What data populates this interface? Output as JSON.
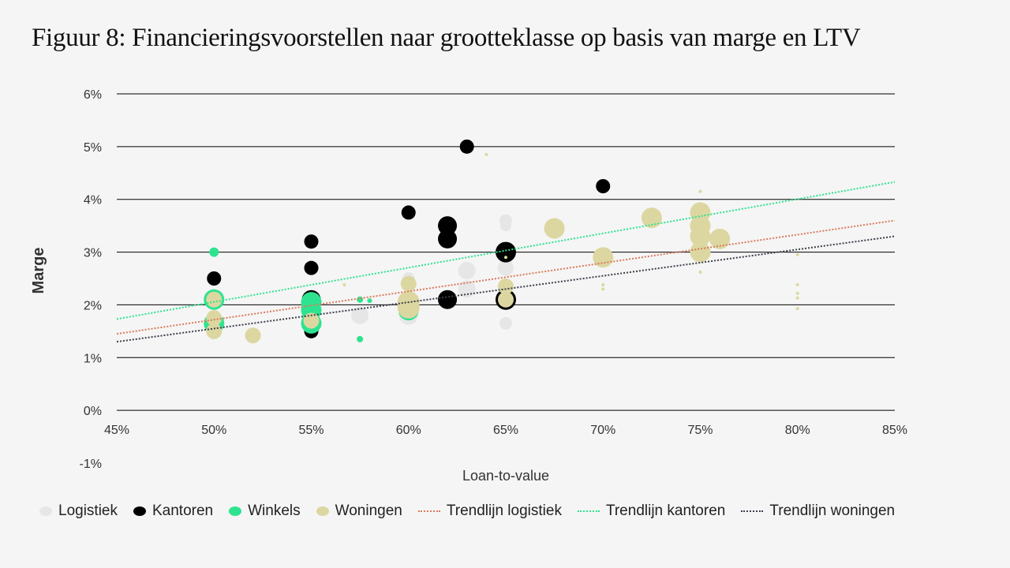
{
  "title": "Figuur 8: Financieringsvoorstellen naar grootteklasse op basis van marge en LTV",
  "chart_data": {
    "type": "scatter",
    "title": "Figuur 8: Financieringsvoorstellen naar grootteklasse op basis van marge en LTV",
    "xlabel": "Loan-to-value",
    "ylabel": "Marge",
    "xlim": [
      45,
      85
    ],
    "ylim": [
      -1,
      6
    ],
    "x_ticks": [
      "45%",
      "50%",
      "55%",
      "60%",
      "65%",
      "70%",
      "75%",
      "80%",
      "85%"
    ],
    "y_ticks": [
      "-1%",
      "0%",
      "1%",
      "2%",
      "3%",
      "4%",
      "5%",
      "6%"
    ],
    "grid": "horizontal",
    "legend_position": "bottom",
    "series": [
      {
        "name": "Logistiek",
        "color": "#e6e6e6",
        "points": [
          {
            "x": 57.5,
            "y": 1.8,
            "s": 11
          },
          {
            "x": 60,
            "y": 1.8,
            "s": 12
          },
          {
            "x": 60,
            "y": 2.5,
            "s": 8
          },
          {
            "x": 63,
            "y": 2.65,
            "s": 11
          },
          {
            "x": 63,
            "y": 2.3,
            "s": 11
          },
          {
            "x": 65,
            "y": 3.6,
            "s": 8
          },
          {
            "x": 65,
            "y": 3.5,
            "s": 7
          },
          {
            "x": 65,
            "y": 2.7,
            "s": 10
          },
          {
            "x": 65,
            "y": 1.65,
            "s": 8
          },
          {
            "x": 50,
            "y": 1.6,
            "s": 8
          }
        ]
      },
      {
        "name": "Kantoren",
        "color": "#000000",
        "points": [
          {
            "x": 50,
            "y": 2.5,
            "s": 9
          },
          {
            "x": 55,
            "y": 3.2,
            "s": 9
          },
          {
            "x": 55,
            "y": 2.7,
            "s": 9
          },
          {
            "x": 55,
            "y": 2.1,
            "s": 12
          },
          {
            "x": 55,
            "y": 1.5,
            "s": 9
          },
          {
            "x": 60,
            "y": 3.75,
            "s": 9
          },
          {
            "x": 62,
            "y": 3.5,
            "s": 12
          },
          {
            "x": 62,
            "y": 3.25,
            "s": 12
          },
          {
            "x": 62,
            "y": 2.1,
            "s": 12
          },
          {
            "x": 63,
            "y": 5.0,
            "s": 9
          },
          {
            "x": 65,
            "y": 3.0,
            "s": 13
          },
          {
            "x": 65,
            "y": 2.1,
            "s": 13
          },
          {
            "x": 70,
            "y": 4.25,
            "s": 9
          }
        ]
      },
      {
        "name": "Winkels",
        "color": "#2ee38f",
        "points": [
          {
            "x": 50,
            "y": 3.0,
            "s": 6
          },
          {
            "x": 50,
            "y": 2.1,
            "s": 13
          },
          {
            "x": 50,
            "y": 1.65,
            "s": 13
          },
          {
            "x": 55,
            "y": 2.05,
            "s": 13
          },
          {
            "x": 55,
            "y": 1.9,
            "s": 13
          },
          {
            "x": 55,
            "y": 1.65,
            "s": 13
          },
          {
            "x": 57.5,
            "y": 2.1,
            "s": 4
          },
          {
            "x": 57.5,
            "y": 1.35,
            "s": 4
          },
          {
            "x": 58,
            "y": 2.08,
            "s": 3
          },
          {
            "x": 60,
            "y": 1.9,
            "s": 13
          }
        ]
      },
      {
        "name": "Woningen",
        "color": "#dcd7a1",
        "points": [
          {
            "x": 50,
            "y": 2.1,
            "s": 10
          },
          {
            "x": 50,
            "y": 1.75,
            "s": 10
          },
          {
            "x": 50,
            "y": 1.5,
            "s": 10
          },
          {
            "x": 52,
            "y": 1.42,
            "s": 10
          },
          {
            "x": 55,
            "y": 1.7,
            "s": 10
          },
          {
            "x": 56.7,
            "y": 2.38,
            "s": 2
          },
          {
            "x": 60,
            "y": 2.4,
            "s": 10
          },
          {
            "x": 60,
            "y": 2.05,
            "s": 14
          },
          {
            "x": 60,
            "y": 1.95,
            "s": 14
          },
          {
            "x": 64,
            "y": 4.85,
            "s": 2
          },
          {
            "x": 65,
            "y": 2.9,
            "s": 2
          },
          {
            "x": 65,
            "y": 2.35,
            "s": 10
          },
          {
            "x": 65,
            "y": 2.1,
            "s": 10
          },
          {
            "x": 67.5,
            "y": 3.45,
            "s": 13
          },
          {
            "x": 70,
            "y": 2.9,
            "s": 13
          },
          {
            "x": 70,
            "y": 2.38,
            "s": 2
          },
          {
            "x": 70,
            "y": 2.3,
            "s": 2
          },
          {
            "x": 72.5,
            "y": 3.65,
            "s": 13
          },
          {
            "x": 75,
            "y": 4.15,
            "s": 2
          },
          {
            "x": 75,
            "y": 3.75,
            "s": 13
          },
          {
            "x": 75,
            "y": 3.5,
            "s": 13
          },
          {
            "x": 75,
            "y": 3.3,
            "s": 13
          },
          {
            "x": 75,
            "y": 3.0,
            "s": 13
          },
          {
            "x": 75,
            "y": 2.62,
            "s": 2
          },
          {
            "x": 76,
            "y": 3.25,
            "s": 13
          },
          {
            "x": 80,
            "y": 2.95,
            "s": 2
          },
          {
            "x": 80,
            "y": 2.38,
            "s": 2
          },
          {
            "x": 80,
            "y": 2.22,
            "s": 2
          },
          {
            "x": 80,
            "y": 2.13,
            "s": 2
          },
          {
            "x": 80,
            "y": 1.93,
            "s": 2
          }
        ]
      }
    ],
    "trendlines": [
      {
        "name": "Trendlijn logistiek",
        "color": "#d97a5a",
        "x": [
          45,
          85
        ],
        "y": [
          1.45,
          3.6
        ]
      },
      {
        "name": "Trendlijn kantoren",
        "color": "#2ee38f",
        "x": [
          45,
          85
        ],
        "y": [
          1.73,
          4.33
        ]
      },
      {
        "name": "Trendlijn woningen",
        "color": "#3b3f4a",
        "x": [
          45,
          85
        ],
        "y": [
          1.3,
          3.3
        ]
      }
    ]
  }
}
